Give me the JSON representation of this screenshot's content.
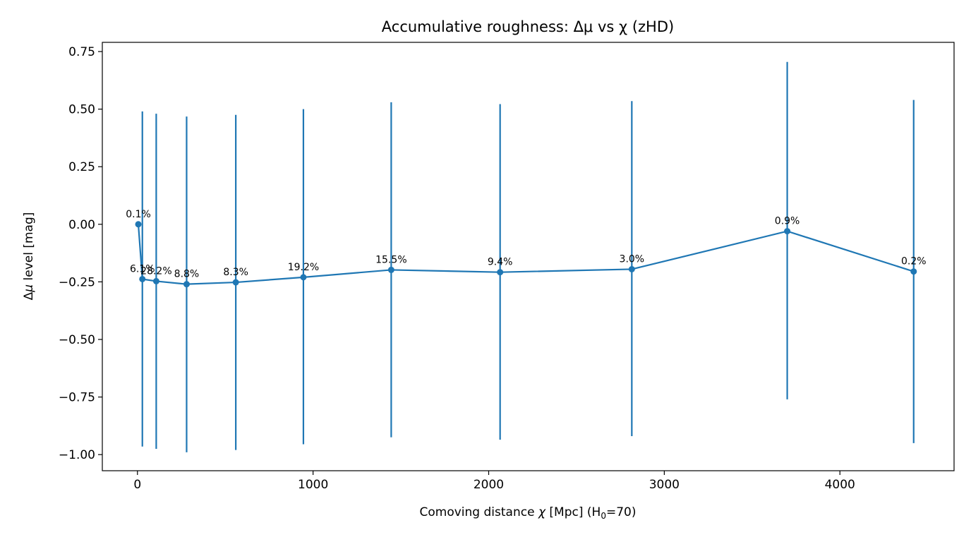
{
  "chart_data": {
    "type": "line",
    "title": "Accumulative roughness: Δμ vs χ (zHD)",
    "xlabel_main": "Comoving distance ",
    "xlabel_var": "χ",
    "xlabel_unit": "  [Mpc]  (H",
    "xlabel_sub": "0",
    "xlabel_end": "=70)",
    "ylabel_main": "Δ",
    "ylabel_var": "μ",
    "ylabel_end": " level  [mag]",
    "xlim": [
      -200,
      4650
    ],
    "ylim": [
      -1.07,
      0.79
    ],
    "xticks": [
      0,
      1000,
      2000,
      3000,
      4000
    ],
    "xtick_labels": [
      "0",
      "1000",
      "2000",
      "3000",
      "4000"
    ],
    "yticks": [
      0.75,
      0.5,
      0.25,
      0.0,
      -0.25,
      -0.5,
      -0.75,
      -1.0
    ],
    "ytick_labels": [
      "0.75",
      "0.50",
      "0.25",
      "0.00",
      "−0.25",
      "−0.50",
      "−0.75",
      "−1.00"
    ],
    "grid": false,
    "legend": "none",
    "color": "#1f77b4",
    "series": [
      {
        "x": [
          5,
          28,
          107,
          280,
          560,
          945,
          1445,
          2065,
          2815,
          3700,
          4420
        ],
        "y": [
          0.0,
          -0.238,
          -0.247,
          -0.26,
          -0.252,
          -0.23,
          -0.198,
          -0.208,
          -0.195,
          -0.03,
          -0.205
        ],
        "err_low": [
          null,
          -0.965,
          -0.975,
          -0.99,
          -0.98,
          -0.955,
          -0.925,
          -0.935,
          -0.92,
          -0.76,
          -0.95
        ],
        "err_high": [
          null,
          0.49,
          0.48,
          0.468,
          0.475,
          0.5,
          0.53,
          0.522,
          0.535,
          0.705,
          0.54
        ],
        "labels": [
          "0.1%",
          "6.1%",
          "28.2%",
          "8.8%",
          "8.3%",
          "19.2%",
          "15.5%",
          "9.4%",
          "3.0%",
          "0.9%",
          "0.2%"
        ]
      }
    ]
  }
}
